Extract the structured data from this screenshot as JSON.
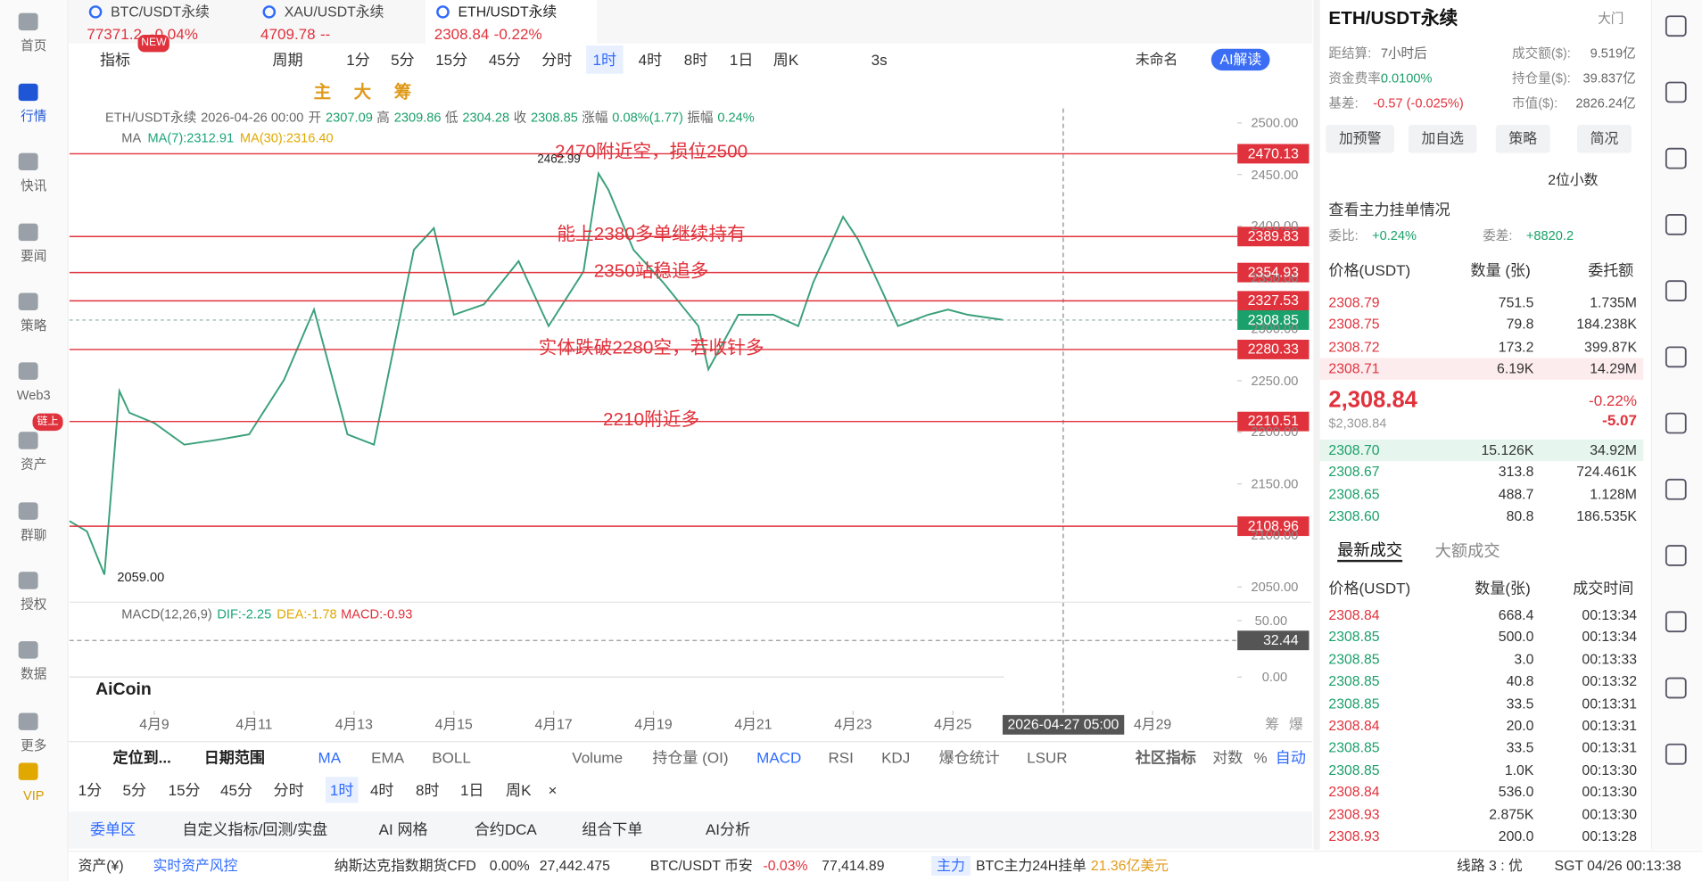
{
  "sidebar": [
    "首页",
    "行情",
    "快讯",
    "要闻",
    "策略",
    "Web3",
    "资产",
    "群聊",
    "授权",
    "数据",
    "更多",
    "VIP"
  ],
  "sidebar_badge": "链上",
  "tabs": [
    {
      "name": "BTC/USDT永续",
      "price": "77371.2",
      "change": "-0.04%"
    },
    {
      "name": "XAU/USDT永续",
      "price": "4709.78",
      "change": "--"
    },
    {
      "name": "ETH/USDT永续",
      "price": "2308.84",
      "change": "-0.22%"
    }
  ],
  "toolbar": {
    "indicator": "指标",
    "new": "NEW",
    "period": "周期",
    "intervals": [
      "1分",
      "5分",
      "15分",
      "45分",
      "分时",
      "1时",
      "4时",
      "8时",
      "1日",
      "周K"
    ],
    "refresh": "3s",
    "layout": "未命名",
    "ai": "AI解读"
  },
  "draw_tools": [
    "主",
    "大",
    "筹"
  ],
  "chart_data": {
    "type": "line",
    "info": [
      "ETH/USDT永续",
      "2026-04-26 00:00",
      "开",
      "2307.09",
      "高",
      "2309.86",
      "低",
      "2304.28",
      "收",
      "2308.85",
      "涨幅",
      "0.08%(1.77)",
      "振幅",
      "0.24%"
    ],
    "ma": [
      "MA",
      "MA(7):2312.91",
      "MA(30):2316.40"
    ],
    "x": [
      7.3,
      7.65,
      8.0,
      8.3,
      8.5,
      9.0,
      9.6,
      10.3,
      10.9,
      11.6,
      12.2,
      12.87,
      13.4,
      14.2,
      14.6,
      15.0,
      15.6,
      16.3,
      16.9,
      17.6,
      17.9,
      18.1,
      18.6,
      19.2,
      19.9,
      20.1,
      20.7,
      21.4,
      21.9,
      22.2,
      22.8,
      23.1,
      23.6,
      23.9,
      24.5,
      24.9,
      25.3,
      26.0
    ],
    "series": [
      {
        "name": "ETH/USDT永续",
        "color": "#3aa07a",
        "values": [
          2114,
          2104,
          2062,
          2240,
          2219,
          2209,
          2188,
          2193,
          2198,
          2251,
          2319,
          2198,
          2188,
          2377,
          2398,
          2314,
          2324,
          2366,
          2303,
          2356,
          2451,
          2435,
          2377,
          2345,
          2303,
          2261,
          2314,
          2314,
          2303,
          2345,
          2409,
          2387,
          2335,
          2303,
          2314,
          2319,
          2314,
          2309
        ]
      }
    ],
    "xlim": [
      7.3,
      30.7
    ],
    "xticks": [
      {
        "value": 9,
        "label": "4月9"
      },
      {
        "value": 11,
        "label": "4月11"
      },
      {
        "value": 13,
        "label": "4月13"
      },
      {
        "value": 15,
        "label": "4月15"
      },
      {
        "value": 17,
        "label": "4月17"
      },
      {
        "value": 19,
        "label": "4月19"
      },
      {
        "value": 21,
        "label": "4月21"
      },
      {
        "value": 23,
        "label": "4月23"
      },
      {
        "value": 25,
        "label": "4月25"
      },
      {
        "value": 29,
        "label": "4月29"
      }
    ],
    "crosshair": {
      "value": 27.21,
      "label": "2026-04-27 05:00"
    },
    "ylim": [
      2030,
      2514
    ],
    "yticks": [
      {
        "value": 2500,
        "label": "2500.00"
      },
      {
        "value": 2450,
        "label": "2450.00"
      },
      {
        "value": 2400,
        "label": "2400.00"
      },
      {
        "value": 2350,
        "label": "2350.00"
      },
      {
        "value": 2300,
        "label": "2300.00"
      },
      {
        "value": 2250,
        "label": "2250.00"
      },
      {
        "value": 2200,
        "label": "2200.00"
      },
      {
        "value": 2150,
        "label": "2150.00"
      },
      {
        "value": 2100,
        "label": "2100.00"
      },
      {
        "value": 2050,
        "label": "2050.00"
      }
    ],
    "levels": [
      2470.13,
      2389.83,
      2354.93,
      2327.53,
      2280.33,
      2210.51,
      2108.96
    ],
    "level_color": "#e0323c",
    "current": 2308.85,
    "annotations": [
      "2470附近空，损位2500",
      "能上2380多单继续持有",
      "2350站稳追多",
      "实体跌破2280空，若收针多",
      "2210附近多"
    ],
    "high_label": "2462.99",
    "low_label": "2059.00",
    "macd": {
      "title": "MACD(12,26,9)",
      "dif": "DIF:-2.25",
      "dea": "DEA:-1.78",
      "macd": "MACD:-0.93",
      "ylim": [
        -25,
        61.5
      ],
      "yticks": [
        {
          "value": 50,
          "label": "50.00"
        },
        {
          "value": 0,
          "label": "0.00"
        }
      ],
      "tag": 32.44
    },
    "watermark": "AiCoin",
    "axis_icons": [
      "筹",
      "爆"
    ]
  },
  "right": {
    "title": "ETH/USDT永续",
    "mode": "大门",
    "stats": [
      [
        "距结算:",
        "7小时后",
        "成交额($):",
        "9.519亿"
      ],
      [
        "资金费率:",
        "0.0100%",
        "持仓量($):",
        "39.837亿"
      ],
      [
        "基差:",
        "-0.57 (-0.025%)",
        "市值($):",
        "2826.24亿"
      ]
    ],
    "buttons": [
      "加预警",
      "加自选",
      "策略",
      "简况"
    ],
    "decimals": "2位小数",
    "depth_link": "查看主力挂单情况",
    "ratio": [
      "委比:",
      "+0.24%",
      "委差:",
      "+8820.2"
    ],
    "book_header": [
      "价格(USDT)",
      "数量 (张)",
      "委托额"
    ],
    "asks": [
      [
        "2308.79",
        "751.5",
        "1.735M"
      ],
      [
        "2308.75",
        "79.8",
        "184.238K"
      ],
      [
        "2308.72",
        "173.2",
        "399.87K"
      ],
      [
        "2308.71",
        "6.19K",
        "14.29M"
      ]
    ],
    "last": "2,308.84",
    "last_usd": "$2,308.84",
    "last_change": "-0.22%",
    "last_diff": "-5.07",
    "bids": [
      [
        "2308.70",
        "15.126K",
        "34.92M"
      ],
      [
        "2308.67",
        "313.8",
        "724.461K"
      ],
      [
        "2308.65",
        "488.7",
        "1.128M"
      ],
      [
        "2308.60",
        "80.8",
        "186.535K"
      ]
    ],
    "trade_tabs": [
      "最新成交",
      "大额成交"
    ],
    "trade_header": [
      "价格(USDT)",
      "数量(张)",
      "成交时间"
    ],
    "trades": [
      [
        "2308.84",
        "668.4",
        "00:13:34"
      ],
      [
        "2308.85",
        "500.0",
        "00:13:34"
      ],
      [
        "2308.85",
        "3.0",
        "00:13:33"
      ],
      [
        "2308.85",
        "40.8",
        "00:13:32"
      ],
      [
        "2308.85",
        "33.5",
        "00:13:31"
      ],
      [
        "2308.84",
        "20.0",
        "00:13:31"
      ],
      [
        "2308.85",
        "33.5",
        "00:13:31"
      ],
      [
        "2308.85",
        "1.0K",
        "00:13:30"
      ],
      [
        "2308.84",
        "536.0",
        "00:13:30"
      ],
      [
        "2308.93",
        "2.875K",
        "00:13:30"
      ],
      [
        "2308.93",
        "200.0",
        "00:13:28"
      ]
    ],
    "trade_colors": [
      "#e0323c",
      "#1aa06a",
      "#1aa06a",
      "#1aa06a",
      "#1aa06a",
      "#e0323c",
      "#1aa06a",
      "#1aa06a",
      "#e0323c",
      "#e0323c",
      "#e0323c"
    ]
  },
  "bottom": {
    "tools": [
      "定位到...",
      "日期范围",
      "MA",
      "EMA",
      "BOLL",
      "Volume",
      "持仓量 (OI)",
      "MACD",
      "RSI",
      "KDJ",
      "爆仓统计",
      "LSUR",
      "社区指标",
      "对数",
      "%",
      "自动"
    ],
    "close": "×",
    "panels": [
      "委单区",
      "自定义指标/回测/实盘",
      "AI 网格",
      "合约DCA",
      "组合下单",
      "AI分析"
    ]
  },
  "status": [
    "资产(¥)",
    "实时资产风控",
    "纳斯达克指数期货CFD",
    "0.00%",
    "27,442.475",
    "BTC/USDT 币安",
    "-0.03%",
    "77,414.89",
    "主力",
    "BTC主力24H挂单",
    "21.36亿美元",
    "线路 3 : 优",
    "SGT 04/26 00:13:38"
  ]
}
